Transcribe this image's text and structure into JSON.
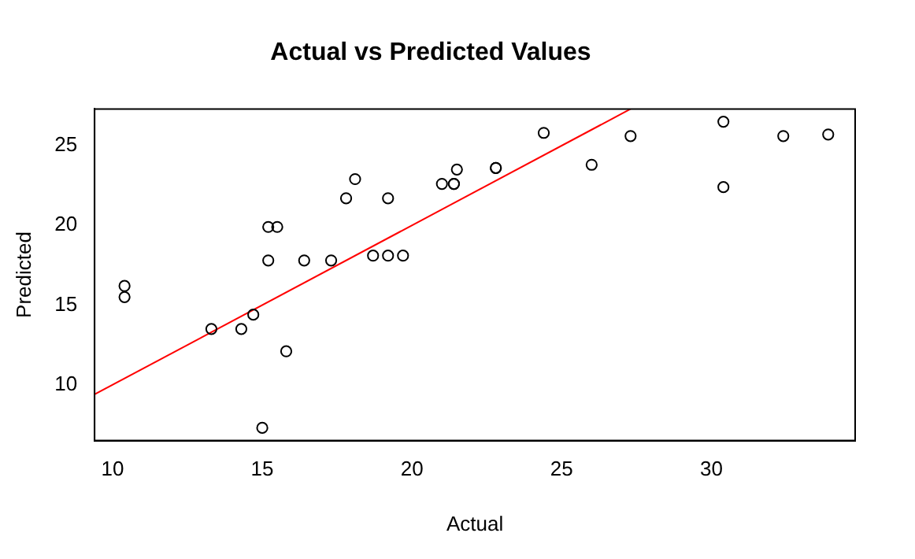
{
  "chart_data": {
    "type": "scatter",
    "title": "Actual vs Predicted Values",
    "xlabel": "Actual",
    "ylabel": "Predicted",
    "xlim": [
      9.4,
      34.8
    ],
    "xticks": [
      10,
      15,
      20,
      25,
      30
    ],
    "ylim": [
      6.5,
      27.3
    ],
    "yticks": [
      10,
      15,
      20,
      25
    ],
    "grid": false,
    "legend": false,
    "marker": "circle",
    "series": [
      {
        "color": "#000000",
        "x": [
          10.4,
          10.4,
          13.3,
          14.3,
          14.7,
          15.0,
          15.2,
          15.2,
          15.5,
          15.8,
          16.4,
          17.3,
          17.8,
          18.1,
          18.7,
          19.2,
          19.2,
          19.7,
          21.0,
          21.4,
          21.4,
          21.5,
          22.8,
          22.8,
          24.4,
          26.0,
          27.3,
          30.4,
          30.4,
          32.4,
          33.9
        ],
        "values": [
          16.2,
          15.5,
          13.5,
          13.5,
          14.4,
          7.3,
          17.8,
          19.9,
          19.9,
          12.1,
          17.8,
          17.8,
          21.7,
          22.9,
          18.1,
          18.1,
          21.7,
          18.1,
          22.6,
          22.6,
          22.6,
          23.5,
          23.6,
          23.6,
          25.8,
          23.8,
          25.6,
          26.5,
          22.4,
          25.6,
          25.7
        ]
      },
      {
        "type": "line",
        "color": "#ff0000",
        "marker": "none",
        "x": [
          9.4,
          27.3
        ],
        "values": [
          9.4,
          27.3
        ]
      }
    ]
  }
}
